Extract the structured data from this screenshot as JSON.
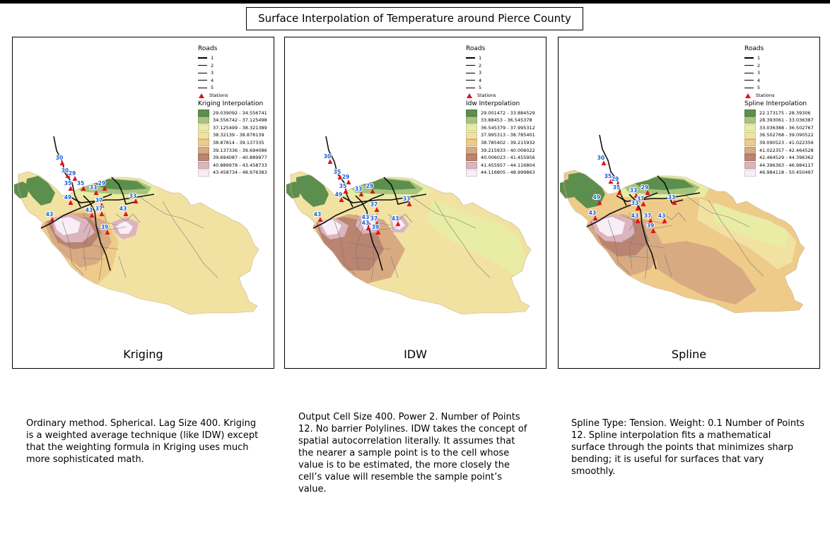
{
  "title": "Surface Interpolation of Temperature around Pierce County",
  "roads_label": "Roads",
  "road_classes": [
    "1",
    "2",
    "3",
    "4",
    "5"
  ],
  "stations_label": "Stations",
  "station_color": "#e0141c",
  "label_color": "#1a5fd6",
  "panels": [
    {
      "id": "kriging",
      "label": "Kriging",
      "interp_title": "Kriging Interpolation",
      "classes": [
        {
          "range": "29.039092 - 34.556741",
          "color": "#5c8f4e"
        },
        {
          "range": "34.556742 - 37.125498",
          "color": "#a6c47e"
        },
        {
          "range": "37.125499 - 38.321389",
          "color": "#e9eca4"
        },
        {
          "range": "38.32139 - 38.878139",
          "color": "#f2e2a2"
        },
        {
          "range": "38.87814 - 39.137335",
          "color": "#efcb8a"
        },
        {
          "range": "39.137336 - 39.694086",
          "color": "#d8aa82"
        },
        {
          "range": "39.694087 - 40.889977",
          "color": "#b98470"
        },
        {
          "range": "40.889978 - 43.458733",
          "color": "#dcb4be"
        },
        {
          "range": "43.458734 - 48.976383",
          "color": "#f9eef6"
        }
      ],
      "stations": [
        "30",
        "30",
        "29",
        "35",
        "35",
        "33",
        "29",
        "49",
        "37",
        "33",
        "43",
        "43",
        "37",
        "43",
        "39"
      ],
      "description": "Ordinary method. Spherical. Lag Size 400. Kriging is a weighted average technique (like IDW) except that the weighting formula in Kriging uses much more sophisticated math."
    },
    {
      "id": "idw",
      "label": "IDW",
      "interp_title": "Idw Interpolation",
      "classes": [
        {
          "range": "29.001472 - 33.884529",
          "color": "#5c8f4e"
        },
        {
          "range": "33.88453 - 36.545378",
          "color": "#a6c47e"
        },
        {
          "range": "36.545379 - 37.995312",
          "color": "#e9eca4"
        },
        {
          "range": "37.995313 - 38.785401",
          "color": "#f2e2a2"
        },
        {
          "range": "38.785402 - 39.215932",
          "color": "#efcb8a"
        },
        {
          "range": "39.215933 - 40.006022",
          "color": "#d8aa82"
        },
        {
          "range": "40.006023 - 41.455956",
          "color": "#b98470"
        },
        {
          "range": "41.455957 - 44.116804",
          "color": "#dcb4be"
        },
        {
          "range": "44.116805 - 48.999863",
          "color": "#f9eef6"
        }
      ],
      "stations": [
        "30",
        "35",
        "29",
        "35",
        "33",
        "29",
        "49",
        "37",
        "33",
        "43",
        "43",
        "37",
        "43",
        "43",
        "39"
      ],
      "description": "Output Cell Size 400. Power 2. Number of Points 12. No barrier Polylines. IDW takes the concept of spatial autocorrelation literally. It assumes that the nearer a sample point is to the cell whose value is to be estimated, the more closely the cell’s value will resemble the sample point’s value."
    },
    {
      "id": "spline",
      "label": "Spline",
      "interp_title": "Spline Interpolation",
      "classes": [
        {
          "range": "22.173175 - 28.39306",
          "color": "#5c8f4e"
        },
        {
          "range": "28.393061 - 33.036387",
          "color": "#a6c47e"
        },
        {
          "range": "33.036388 - 36.502767",
          "color": "#e9eca4"
        },
        {
          "range": "36.502768 - 39.090522",
          "color": "#f2e2a2"
        },
        {
          "range": "39.090523 - 41.022356",
          "color": "#efcb8a"
        },
        {
          "range": "41.022357 - 42.464528",
          "color": "#d8aa82"
        },
        {
          "range": "42.464529 - 44.396362",
          "color": "#b98470"
        },
        {
          "range": "44.396363 - 46.984117",
          "color": "#dcb4be"
        },
        {
          "range": "46.984118 - 50.450497",
          "color": "#f9eef6"
        }
      ],
      "stations": [
        "30",
        "35",
        "29",
        "35",
        "33",
        "29",
        "49",
        "37",
        "33",
        "43",
        "43",
        "37",
        "43",
        "39",
        "33"
      ],
      "description": "Spline Type: Tension. Weight: 0.1 Number of Points 12. Spline interpolation fits a mathematical surface through the points that minimizes sharp bending; it is useful for surfaces that vary smoothly."
    }
  ]
}
